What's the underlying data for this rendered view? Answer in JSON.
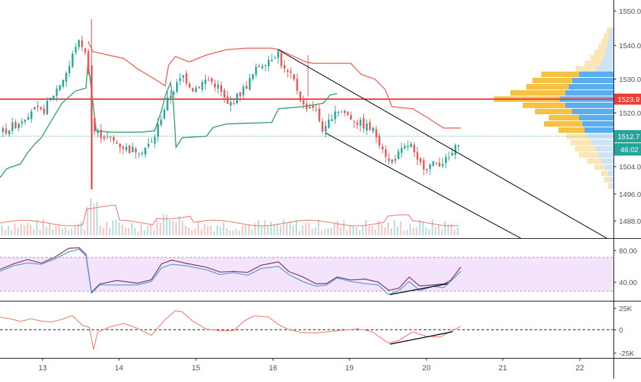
{
  "colors": {
    "up": "#26a69a",
    "down": "#ef5350",
    "upper_band": "#f06b62",
    "lower_band": "#3f9f7a",
    "resistance": "#f03e36",
    "channel": "#131722",
    "rsi_line": "#7b2e5e",
    "rsi_ma": "#5b9bd5",
    "rsi_band": "#f3e3fb",
    "osc_line": "#f08070",
    "profile_up": "#5aaef0",
    "profile_down": "#f7c244",
    "profile_up_light": "#cfe3f7",
    "profile_down_light": "#fbe6b8",
    "axis_text": "#4a4f5c"
  },
  "price_axis": {
    "ticks": [
      "1550.0",
      "1540.0",
      "1530.0",
      "1520.0",
      "1504.0",
      "1496.0",
      "1488.0"
    ],
    "resistance_label": "1523.9",
    "last_price_label": "1512.7",
    "countdown_label": "46:02"
  },
  "rsi_axis": {
    "ticks": [
      "80.00",
      "40.00"
    ]
  },
  "osc_axis": {
    "ticks": [
      "25K",
      "0",
      "-25K"
    ]
  },
  "time_axis": {
    "ticks": [
      "13",
      "14",
      "15",
      "16",
      "19",
      "20",
      "21",
      "22"
    ]
  },
  "chart_data": {
    "type": "candlestick",
    "price_range": [
      1482,
      1553
    ],
    "resistance_level": 1523.9,
    "last_price": 1512.7,
    "x_categories": [
      "13",
      "14",
      "15",
      "16",
      "19",
      "20",
      "21",
      "22"
    ],
    "price_ticks": [
      1550,
      1540,
      1530,
      1520,
      1504,
      1496,
      1488
    ],
    "rsi_range": [
      20,
      100
    ],
    "rsi_ticks": [
      80,
      40
    ],
    "rsi_band": [
      30,
      70
    ],
    "osc_range": [
      -35000,
      30000
    ],
    "osc_ticks": [
      25000,
      0,
      -25000
    ]
  }
}
